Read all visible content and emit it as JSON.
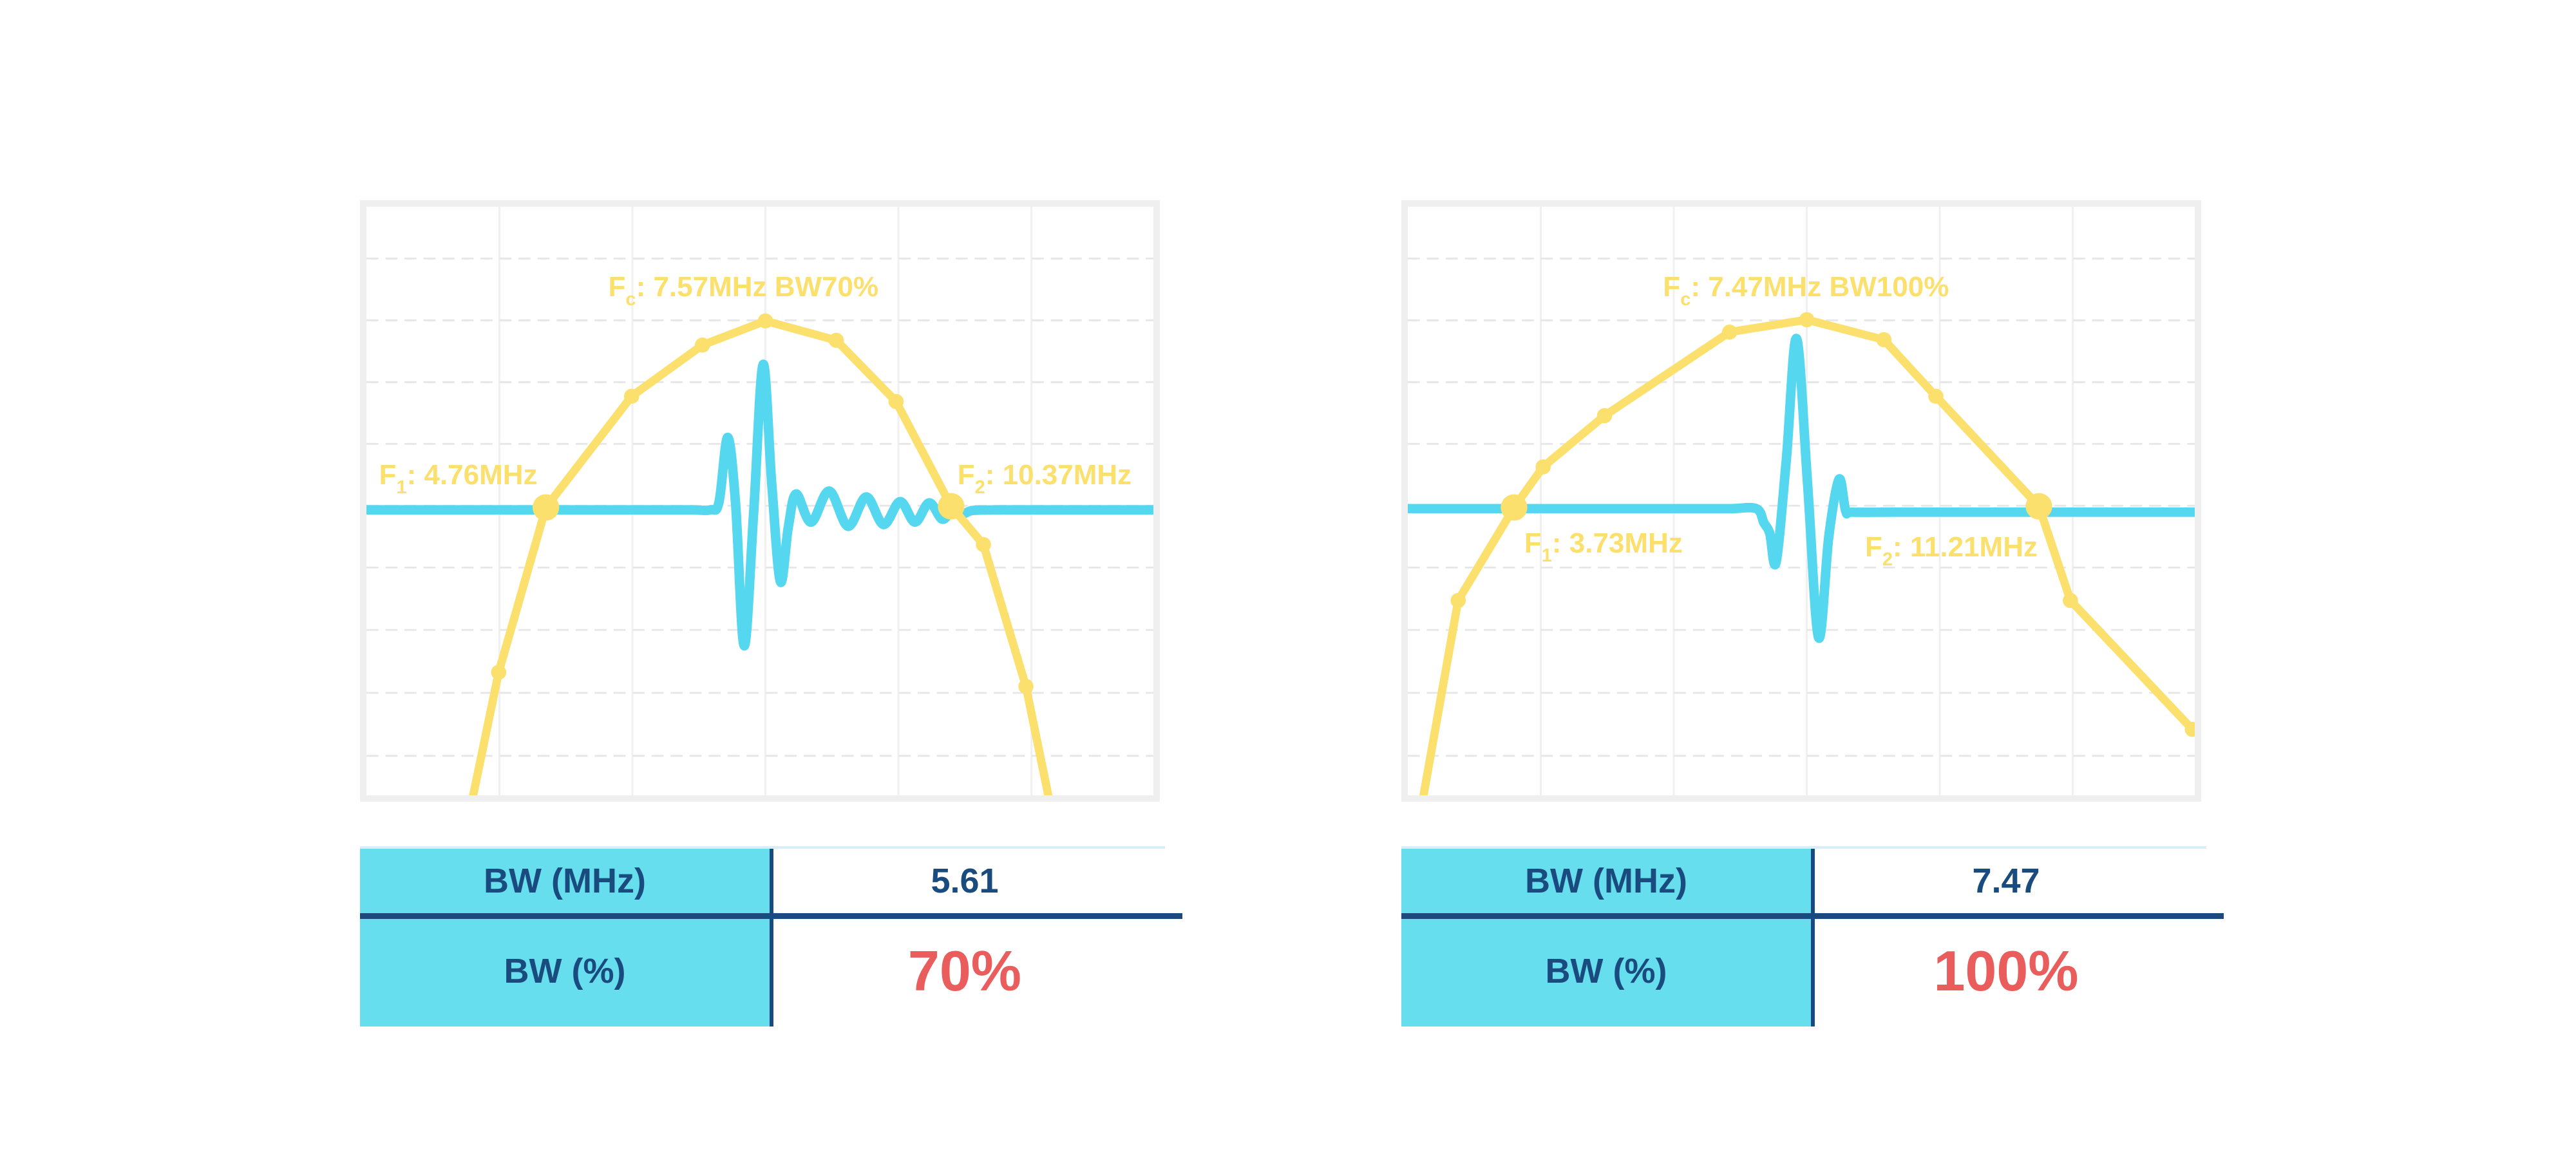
{
  "colors": {
    "yellow": "#FBE06E",
    "cyan": "#55D8EF",
    "table_cyan": "#67DEED",
    "navy": "#1A4B7E",
    "red": "#EA5D5D",
    "frame": "#EFEFEF",
    "grid_h": "#E7E7E7",
    "grid_v": "#F0F0F0",
    "table_topline": "#D9EDF7",
    "background": "#FFFFFF"
  },
  "chart_data": [
    {
      "type": "line",
      "title": "F_c: 7.57MHz BW70%",
      "fc_mhz": 7.57,
      "f1_mhz": 4.76,
      "f2_mhz": 10.37,
      "bw_mhz": 5.61,
      "bw_percent": 70,
      "axes_hidden": true,
      "grid": {
        "on": true,
        "v": [
          0.169,
          0.338,
          0.507,
          0.676,
          0.845
        ],
        "h": [
          0.088,
          0.193,
          0.298,
          0.403,
          0.508,
          0.613,
          0.719,
          0.826,
          0.933
        ]
      },
      "annotations": [
        {
          "f": "F",
          "sub": "c",
          "text": ": 7.57MHz BW70%",
          "pos": {
            "x": 0.479,
            "y": 0.137,
            "anchor": "center"
          }
        },
        {
          "f": "F",
          "sub": "1",
          "text": ": 4.76MHz",
          "pos": {
            "x": 0.016,
            "y": 0.456,
            "anchor": "left"
          }
        },
        {
          "f": "F",
          "sub": "2",
          "text": ": 10.37MHz",
          "pos": {
            "x": 0.751,
            "y": 0.456,
            "anchor": "left"
          }
        }
      ],
      "series": [
        {
          "name": "spectrum",
          "color": "#FBE06E",
          "marker_color": "#FBE06E",
          "points": [
            {
              "x": 0.131,
              "y": 1.03
            },
            {
              "x": 0.168,
              "y": 0.791,
              "m": "dot"
            },
            {
              "x": 0.228,
              "y": 0.511,
              "m": "big"
            },
            {
              "x": 0.337,
              "y": 0.322,
              "m": "dot"
            },
            {
              "x": 0.427,
              "y": 0.235,
              "m": "dot"
            },
            {
              "x": 0.507,
              "y": 0.194,
              "m": "dot"
            },
            {
              "x": 0.597,
              "y": 0.227,
              "m": "dot"
            },
            {
              "x": 0.673,
              "y": 0.331,
              "m": "dot"
            },
            {
              "x": 0.743,
              "y": 0.509,
              "m": "big"
            },
            {
              "x": 0.784,
              "y": 0.574,
              "m": "dot"
            },
            {
              "x": 0.838,
              "y": 0.815,
              "m": "dot"
            },
            {
              "x": 0.871,
              "y": 1.03
            }
          ]
        },
        {
          "name": "echo-pulse",
          "color": "#55D8EF",
          "points": [
            [
              0,
              0.515
            ],
            [
              0.09,
              0.515
            ],
            [
              0.18,
              0.515
            ],
            [
              0.27,
              0.515
            ],
            [
              0.36,
              0.515
            ],
            [
              0.41,
              0.515
            ],
            [
              0.437,
              0.515
            ],
            [
              0.448,
              0.502
            ],
            [
              0.459,
              0.392
            ],
            [
              0.469,
              0.503
            ],
            [
              0.48,
              0.746
            ],
            [
              0.492,
              0.52
            ],
            [
              0.504,
              0.268
            ],
            [
              0.515,
              0.47
            ],
            [
              0.526,
              0.637
            ],
            [
              0.536,
              0.545
            ],
            [
              0.546,
              0.488
            ],
            [
              0.565,
              0.536
            ],
            [
              0.588,
              0.483
            ],
            [
              0.612,
              0.543
            ],
            [
              0.635,
              0.493
            ],
            [
              0.657,
              0.54
            ],
            [
              0.678,
              0.501
            ],
            [
              0.697,
              0.536
            ],
            [
              0.715,
              0.503
            ],
            [
              0.732,
              0.531
            ],
            [
              0.746,
              0.512
            ],
            [
              0.759,
              0.521
            ],
            [
              0.771,
              0.516
            ],
            [
              0.81,
              0.515
            ],
            [
              0.89,
              0.515
            ],
            [
              1,
              0.515
            ]
          ]
        }
      ],
      "table": {
        "rows": [
          {
            "label": "BW (MHz)",
            "value": "5.61"
          },
          {
            "label": "BW (%)",
            "value": "70%"
          }
        ]
      }
    },
    {
      "type": "line",
      "title": "F_c: 7.47MHz BW100%",
      "fc_mhz": 7.47,
      "f1_mhz": 3.73,
      "f2_mhz": 11.21,
      "bw_mhz": 7.47,
      "bw_percent": 100,
      "axes_hidden": true,
      "grid": {
        "on": true,
        "v": [
          0.169,
          0.338,
          0.507,
          0.676,
          0.845
        ],
        "h": [
          0.088,
          0.193,
          0.298,
          0.403,
          0.508,
          0.613,
          0.719,
          0.826,
          0.933
        ]
      },
      "annotations": [
        {
          "f": "F",
          "sub": "c",
          "text": ": 7.47MHz BW100%",
          "pos": {
            "x": 0.506,
            "y": 0.137,
            "anchor": "center"
          }
        },
        {
          "f": "F",
          "sub": "1",
          "text": ": 3.73MHz",
          "pos": {
            "x": 0.148,
            "y": 0.572,
            "anchor": "left"
          }
        },
        {
          "f": "F",
          "sub": "2",
          "text": ": 11.21MHz",
          "pos": {
            "x": 0.581,
            "y": 0.579,
            "anchor": "left"
          }
        }
      ],
      "series": [
        {
          "name": "spectrum",
          "color": "#FBE06E",
          "marker_color": "#FBE06E",
          "points": [
            {
              "x": 0.016,
              "y": 1.03
            },
            {
              "x": 0.064,
              "y": 0.669,
              "m": "dot"
            },
            {
              "x": 0.135,
              "y": 0.511,
              "m": "big"
            },
            {
              "x": 0.172,
              "y": 0.442,
              "m": "dot"
            },
            {
              "x": 0.25,
              "y": 0.355,
              "m": "dot"
            },
            {
              "x": 0.409,
              "y": 0.213,
              "m": "dot"
            },
            {
              "x": 0.507,
              "y": 0.192,
              "m": "dot"
            },
            {
              "x": 0.605,
              "y": 0.226,
              "m": "dot"
            },
            {
              "x": 0.671,
              "y": 0.322,
              "m": "dot"
            },
            {
              "x": 0.802,
              "y": 0.509,
              "m": "big"
            },
            {
              "x": 0.842,
              "y": 0.669,
              "m": "dot"
            },
            {
              "x": 0.997,
              "y": 0.888,
              "m": "end"
            }
          ]
        },
        {
          "name": "echo-pulse",
          "color": "#55D8EF",
          "points": [
            [
              0,
              0.513
            ],
            [
              0.09,
              0.513
            ],
            [
              0.18,
              0.513
            ],
            [
              0.27,
              0.513
            ],
            [
              0.36,
              0.513
            ],
            [
              0.41,
              0.513
            ],
            [
              0.443,
              0.513
            ],
            [
              0.4525,
              0.537
            ],
            [
              0.46,
              0.555
            ],
            [
              0.468,
              0.604
            ],
            [
              0.481,
              0.43
            ],
            [
              0.494,
              0.224
            ],
            [
              0.508,
              0.47
            ],
            [
              0.522,
              0.732
            ],
            [
              0.535,
              0.56
            ],
            [
              0.548,
              0.463
            ],
            [
              0.5565,
              0.517
            ],
            [
              0.565,
              0.519
            ],
            [
              0.62,
              0.519
            ],
            [
              0.7,
              0.519
            ],
            [
              0.78,
              0.519
            ],
            [
              0.89,
              0.519
            ],
            [
              1,
              0.519
            ]
          ]
        }
      ],
      "table": {
        "rows": [
          {
            "label": "BW (MHz)",
            "value": "7.47"
          },
          {
            "label": "BW (%)",
            "value": "100%"
          }
        ]
      }
    }
  ]
}
